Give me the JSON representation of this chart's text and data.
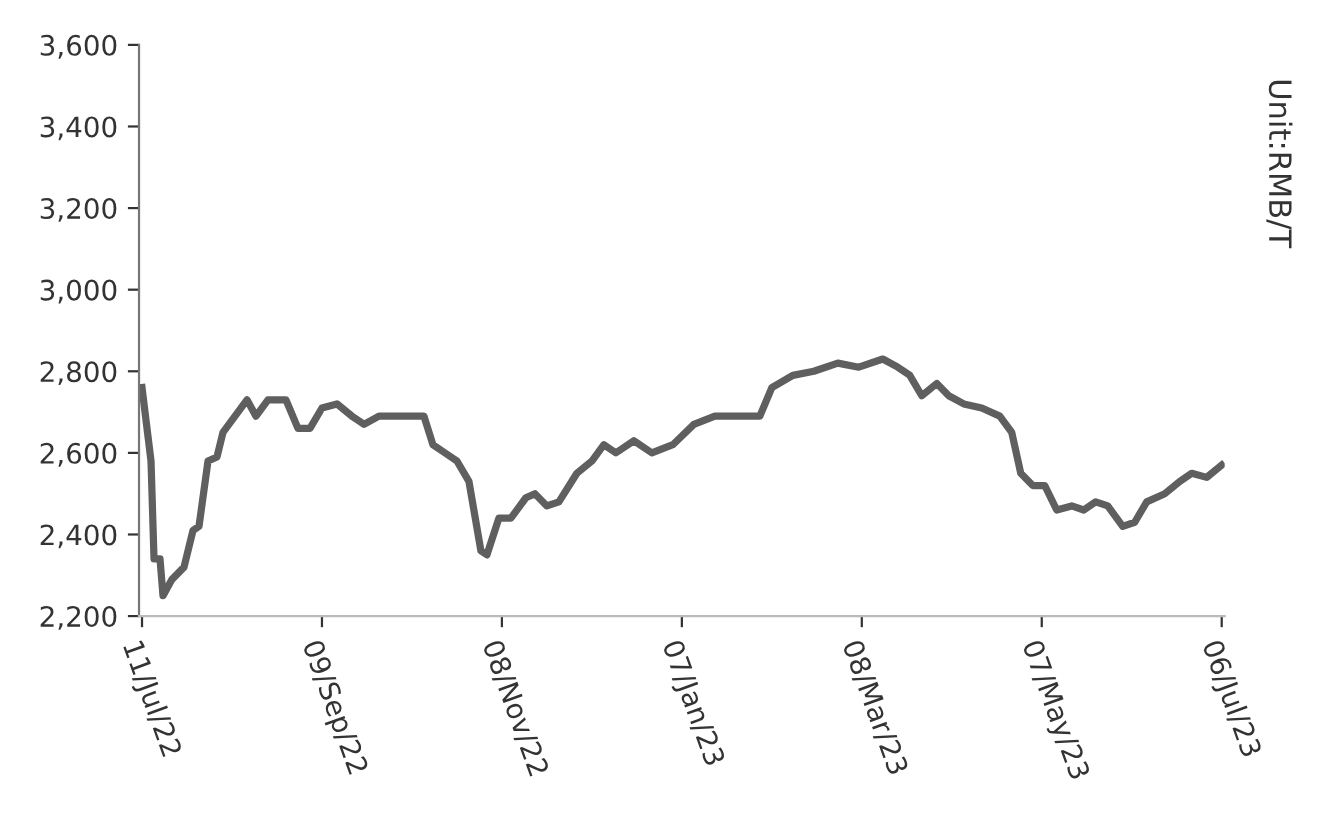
{
  "chart_data": {
    "type": "line",
    "annotations": [
      "Unit:RMB/T"
    ],
    "x": [
      "2022-07-11",
      "2022-07-14",
      "2022-07-15",
      "2022-07-17",
      "2022-07-18",
      "2022-07-21",
      "2022-07-25",
      "2022-07-28",
      "2022-07-30",
      "2022-08-02",
      "2022-08-05",
      "2022-08-07",
      "2022-08-11",
      "2022-08-15",
      "2022-08-18",
      "2022-08-22",
      "2022-08-28",
      "2022-09-01",
      "2022-09-05",
      "2022-09-09",
      "2022-09-14",
      "2022-09-19",
      "2022-09-23",
      "2022-09-28",
      "2022-10-05",
      "2022-10-13",
      "2022-10-16",
      "2022-10-20",
      "2022-10-24",
      "2022-10-28",
      "2022-11-01",
      "2022-11-03",
      "2022-11-07",
      "2022-11-11",
      "2022-11-16",
      "2022-11-19",
      "2022-11-23",
      "2022-11-27",
      "2022-12-03",
      "2022-12-08",
      "2022-12-12",
      "2022-12-16",
      "2022-12-22",
      "2022-12-28",
      "2023-01-04",
      "2023-01-11",
      "2023-01-18",
      "2023-01-25",
      "2023-02-02",
      "2023-02-06",
      "2023-02-13",
      "2023-02-20",
      "2023-02-28",
      "2023-03-07",
      "2023-03-15",
      "2023-03-20",
      "2023-03-24",
      "2023-03-28",
      "2023-04-02",
      "2023-04-06",
      "2023-04-11",
      "2023-04-17",
      "2023-04-23",
      "2023-04-27",
      "2023-04-30",
      "2023-05-04",
      "2023-05-08",
      "2023-05-12",
      "2023-05-17",
      "2023-05-21",
      "2023-05-25",
      "2023-05-29",
      "2023-06-03",
      "2023-06-07",
      "2023-06-11",
      "2023-06-17",
      "2023-06-22",
      "2023-06-26",
      "2023-07-01",
      "2023-07-06"
    ],
    "series": [
      {
        "color": "#5f5f5f",
        "values": [
          2760,
          2580,
          2340,
          2340,
          2250,
          2290,
          2320,
          2410,
          2420,
          2580,
          2590,
          2650,
          2690,
          2730,
          2690,
          2730,
          2730,
          2660,
          2660,
          2710,
          2720,
          2690,
          2670,
          2690,
          2690,
          2690,
          2620,
          2600,
          2580,
          2530,
          2360,
          2350,
          2440,
          2440,
          2490,
          2500,
          2470,
          2480,
          2550,
          2580,
          2620,
          2600,
          2630,
          2600,
          2620,
          2670,
          2690,
          2690,
          2690,
          2760,
          2790,
          2800,
          2820,
          2810,
          2830,
          2810,
          2790,
          2740,
          2770,
          2740,
          2720,
          2710,
          2690,
          2650,
          2550,
          2520,
          2520,
          2460,
          2470,
          2460,
          2480,
          2470,
          2420,
          2430,
          2480,
          2500,
          2530,
          2550,
          2540,
          2570
        ]
      }
    ],
    "xlim": [
      "2022-07-10",
      "2023-07-07"
    ],
    "xticks": [
      {
        "value": "2022-07-11",
        "label": "11/Jul/22"
      },
      {
        "value": "2022-09-09",
        "label": "09/Sep/22"
      },
      {
        "value": "2022-11-08",
        "label": "08/Nov/22"
      },
      {
        "value": "2023-01-07",
        "label": "07/Jan/23"
      },
      {
        "value": "2023-03-08",
        "label": "08/Mar/23"
      },
      {
        "value": "2023-05-07",
        "label": "07/May/23"
      },
      {
        "value": "2023-07-06",
        "label": "06/Jul/23"
      }
    ],
    "ylim": [
      2200,
      3600
    ],
    "yticks": [
      {
        "value": 2200,
        "label": "2,200"
      },
      {
        "value": 2400,
        "label": "2,400"
      },
      {
        "value": 2600,
        "label": "2,600"
      },
      {
        "value": 2800,
        "label": "2,800"
      },
      {
        "value": 3000,
        "label": "3,000"
      },
      {
        "value": 3200,
        "label": "3,200"
      },
      {
        "value": 3400,
        "label": "3,400"
      },
      {
        "value": 3600,
        "label": "3,600"
      }
    ],
    "grid": false,
    "legend": false,
    "marker": "none",
    "line_style": "solid"
  }
}
